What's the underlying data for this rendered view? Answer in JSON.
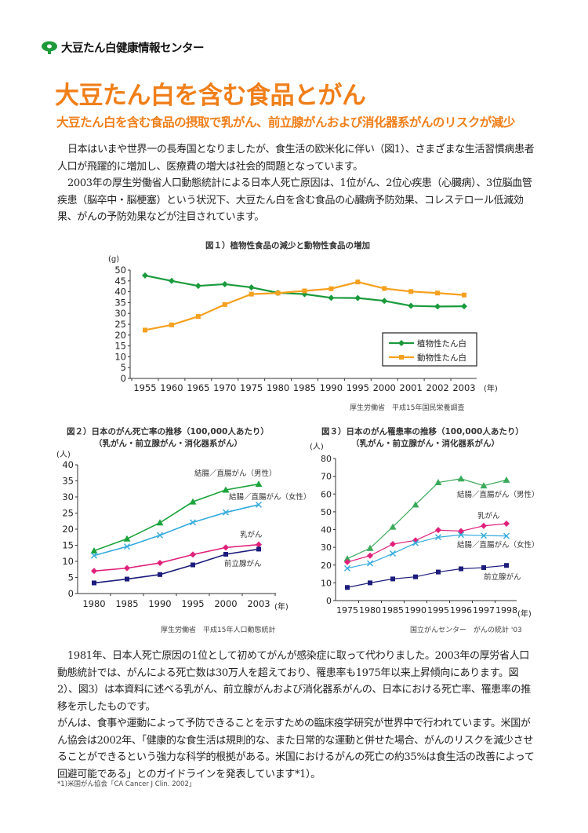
{
  "header": {
    "org_name": "大豆たん白健康情報センター",
    "logo_icon": "leaf-tree-icon",
    "brand_color": "#1e9a3a"
  },
  "title": "大豆たん白を含む食品とがん",
  "subtitle": "大豆たん白を含む食品の摂取で乳がん、前立腺がんおよび消化器系がんのリスクが減少",
  "accent_color": "#f07f1a",
  "intro": [
    "日本はいまや世界一の長寿国となりましたが、食生活の欧米化に伴い（図1）、さまざまな生活習慣病患者人口が飛躍的に増加し、医療費の増大は社会的問題となっています。",
    "2003年の厚生労働省人口動態統計による日本人死亡原因は、1位がん、2位心疾患（心臓病）、3位脳血管疾患（脳卒中・脳梗塞）という状況下、大豆たん白を含む食品の心臓病予防効果、コレステロール低減効果、がんの予防効果などが注目されています。"
  ],
  "outro": [
    "1981年、日本人死亡原因の1位として初めてがんが感染症に取って代わりました。2003年の厚労省人口動態統計では、がんによる死亡数は30万人を超えており、罹患率も1975年以来上昇傾向にあります。図2）、図3）は本資料に述べる乳がん、前立腺がんおよび消化器系がんの、日本における死亡率、罹患率の推移を示したものです。",
    "がんは、食事や運動によって予防できることを示すための臨床疫学研究が世界中で行われています。米国がん協会は2002年、「健康的な食生活は規則的な、また日常的な運動と併せた場合、がんのリスクを減少させることができるという強力な科学的根拠がある。米国におけるがんの死亡の約35%は食生活の改善によって回避可能である」とのガイドラインを発表しています*1）。"
  ],
  "footnote": "*1)米国がん協会「CA Cancer J Clin. 2002」",
  "chart_data": [
    {
      "type": "line",
      "title": "図１）植物性食品の減少と動物性食品の増加",
      "ylabel": "(g)",
      "xlabel": "(年)",
      "ylim": [
        0,
        50
      ],
      "yticks": [
        0,
        5,
        10,
        15,
        20,
        25,
        30,
        35,
        40,
        45,
        50
      ],
      "categories": [
        "1955",
        "1960",
        "1965",
        "1970",
        "1975",
        "1980",
        "1985",
        "1990",
        "1995",
        "2000",
        "2001",
        "2002",
        "2003"
      ],
      "series": [
        {
          "name": "植物性たん白",
          "color": "#1a9a3c",
          "marker": "diamond",
          "values": [
            47.5,
            45,
            42.7,
            43.5,
            42,
            39.5,
            38.9,
            37.2,
            37.1,
            35.8,
            33.5,
            33.2,
            33.3
          ]
        },
        {
          "name": "動物性たん白",
          "color": "#f5a01e",
          "marker": "square",
          "values": [
            22.3,
            24.7,
            28.6,
            34.1,
            38.9,
            39.4,
            40.4,
            41.4,
            44.5,
            41.5,
            40.1,
            39.4,
            38.5
          ]
        }
      ],
      "legend": "bottom-right",
      "source": "厚生労働省　平成15年国民栄養調査"
    },
    {
      "type": "line",
      "title": "図２）日本のがん死亡率の推移（100,000人あたり）",
      "subtitle": "（乳がん・前立腺がん・消化器系がん）",
      "ylabel": "(人)",
      "xlabel": "(年)",
      "ylim": [
        0,
        40
      ],
      "yticks": [
        0,
        5,
        10,
        15,
        20,
        25,
        30,
        35,
        40
      ],
      "categories": [
        "1980",
        "1985",
        "1990",
        "1995",
        "2000",
        "2003"
      ],
      "series": [
        {
          "name": "結腸／直腸がん（男性）",
          "color": "#1aa33a",
          "marker": "triangle",
          "values": [
            13.3,
            17,
            22,
            28.5,
            32.2,
            34
          ]
        },
        {
          "name": "結腸／直腸がん（女性）",
          "color": "#33aadd",
          "marker": "x",
          "values": [
            11.8,
            14.6,
            18.1,
            22.1,
            25.2,
            27.6
          ]
        },
        {
          "name": "乳がん",
          "color": "#e0207a",
          "marker": "diamond",
          "values": [
            7,
            7.9,
            9.5,
            12.1,
            14.3,
            15.2
          ]
        },
        {
          "name": "前立腺がん",
          "color": "#1c1c7c",
          "marker": "square",
          "values": [
            3.3,
            4.5,
            5.9,
            8.9,
            12.2,
            13.8
          ]
        }
      ],
      "source": "厚生労働省　平成15年人口動態統計"
    },
    {
      "type": "line",
      "title": "図３）日本のがん罹患率の推移（100,000人あたり）",
      "subtitle": "（乳がん・前立腺がん・消化器系がん）",
      "ylabel": "(人)",
      "xlabel": "(年)",
      "ylim": [
        0,
        80
      ],
      "yticks": [
        0,
        10,
        20,
        30,
        40,
        50,
        60,
        70,
        80
      ],
      "categories": [
        "1975",
        "1980",
        "1985",
        "1990",
        "1995",
        "1996",
        "1997",
        "1998"
      ],
      "series": [
        {
          "name": "結腸／直腸がん（男性）",
          "color": "#3aaa5a",
          "marker": "triangle",
          "values": [
            23.6,
            29.5,
            41.5,
            54,
            66.5,
            68.6,
            64.7,
            67.9
          ]
        },
        {
          "name": "乳がん",
          "color": "#e0207a",
          "marker": "diamond",
          "values": [
            21.7,
            25.3,
            31.8,
            33.9,
            39.7,
            39.1,
            42.1,
            43.3
          ]
        },
        {
          "name": "結腸／直腸がん（女性）",
          "color": "#33aadd",
          "marker": "x",
          "values": [
            18.2,
            21,
            26.5,
            32.4,
            35.7,
            37,
            36.6,
            36.4
          ]
        },
        {
          "name": "前立腺がん",
          "color": "#1c1c7c",
          "marker": "square",
          "values": [
            7.4,
            10,
            12.2,
            13.4,
            16.1,
            17.9,
            18.6,
            19.8
          ]
        }
      ],
      "source": "国立がんセンター　がんの統計 '03"
    }
  ]
}
